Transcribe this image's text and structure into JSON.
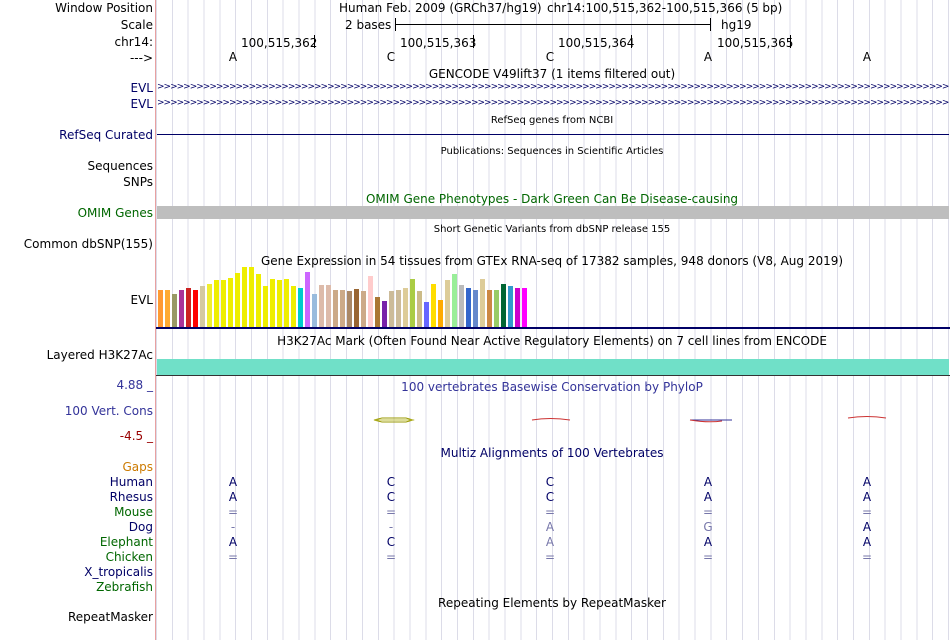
{
  "header": {
    "window_position_label": "Window Position",
    "scale_label": "Scale",
    "chrom_label": "chr14:",
    "strand_label": "--->",
    "assembly": "Human Feb. 2009 (GRCh37/hg19)",
    "position": "chr14:100,515,362-100,515,366 (5 bp)",
    "scale_text": "2 bases",
    "db_name": "hg19",
    "coords": [
      "100,515,362",
      "100,515,363",
      "100,515,364",
      "100,515,365"
    ],
    "bases": [
      "A",
      "C",
      "C",
      "A",
      "A"
    ]
  },
  "gencode": {
    "title": "GENCODE V49lift37 (1 items filtered out)",
    "rows": [
      "EVL",
      "EVL"
    ],
    "arrow_glyphs": ">>>>>>>>>>>>>>>>>>>>>>>>>>>>>>>>>>>>>>>>>>>>>>>>>>>>>>>>>>>>>>>>>>>>>>>>>>>>>>>>>>>>>>>>>>>>>>>>>>>>>>>>>>>>>>>>>>>>>>>>>>>>>>>>>>>>>>>>>>>>>>>>>>>>>>>>>>>>>>>>>>"
  },
  "refseq": {
    "title": "RefSeq genes from NCBI",
    "label": "RefSeq Curated"
  },
  "publications": {
    "title": "Publications: Sequences in Scientific Articles",
    "label": "Sequences"
  },
  "snps_label": "SNPs",
  "omim": {
    "title": "OMIM Gene Phenotypes - Dark Green Can Be Disease-causing",
    "label": "OMIM Genes",
    "bar_color": "#bebebe"
  },
  "dbsnp": {
    "title": "Short Genetic Variants from dbSNP release 155",
    "label": "Common dbSNP(155)"
  },
  "gtex": {
    "title": "Gene Expression in 54 tissues from GTEx RNA-seq of 17382 samples, 948 donors (V8, Aug 2019)",
    "label": "EVL",
    "bars": [
      {
        "v": 0.62,
        "c": "#ff9933"
      },
      {
        "v": 0.62,
        "c": "#ffaa33"
      },
      {
        "v": 0.55,
        "c": "#999966"
      },
      {
        "v": 0.62,
        "c": "#aa3399"
      },
      {
        "v": 0.65,
        "c": "#cc2222"
      },
      {
        "v": 0.62,
        "c": "#ff0000"
      },
      {
        "v": 0.68,
        "c": "#d4c9a0"
      },
      {
        "v": 0.72,
        "c": "#f0ee30"
      },
      {
        "v": 0.78,
        "c": "#eeee00"
      },
      {
        "v": 0.78,
        "c": "#eeee00"
      },
      {
        "v": 0.82,
        "c": "#eeee00"
      },
      {
        "v": 0.9,
        "c": "#eeee00"
      },
      {
        "v": 1.0,
        "c": "#eeee00"
      },
      {
        "v": 1.0,
        "c": "#eeee00"
      },
      {
        "v": 0.88,
        "c": "#eeee00"
      },
      {
        "v": 0.68,
        "c": "#eeee00"
      },
      {
        "v": 0.8,
        "c": "#eeee00"
      },
      {
        "v": 0.78,
        "c": "#eeee00"
      },
      {
        "v": 0.8,
        "c": "#eeee00"
      },
      {
        "v": 0.68,
        "c": "#eeee00"
      },
      {
        "v": 0.65,
        "c": "#00cccc"
      },
      {
        "v": 0.92,
        "c": "#cc66ff"
      },
      {
        "v": 0.55,
        "c": "#99bbdd"
      },
      {
        "v": 0.7,
        "c": "#ddbbaa"
      },
      {
        "v": 0.7,
        "c": "#ddbbaa"
      },
      {
        "v": 0.62,
        "c": "#ccaa88"
      },
      {
        "v": 0.62,
        "c": "#ccaa88"
      },
      {
        "v": 0.6,
        "c": "#aa8866"
      },
      {
        "v": 0.63,
        "c": "#996633"
      },
      {
        "v": 0.6,
        "c": "#ccaa88"
      },
      {
        "v": 0.85,
        "c": "#ffcccc"
      },
      {
        "v": 0.5,
        "c": "#aa7733"
      },
      {
        "v": 0.43,
        "c": "#7722aa"
      },
      {
        "v": 0.6,
        "c": "#ccbb99"
      },
      {
        "v": 0.62,
        "c": "#ccbb99"
      },
      {
        "v": 0.65,
        "c": "#ddcc99"
      },
      {
        "v": 0.8,
        "c": "#aacc44"
      },
      {
        "v": 0.6,
        "c": "#ccbb88"
      },
      {
        "v": 0.42,
        "c": "#6666ff"
      },
      {
        "v": 0.72,
        "c": "#ffdd00"
      },
      {
        "v": 0.45,
        "c": "#ffaa00"
      },
      {
        "v": 0.78,
        "c": "#ddcc99"
      },
      {
        "v": 0.88,
        "c": "#99ee99"
      },
      {
        "v": 0.7,
        "c": "#bbbbbb"
      },
      {
        "v": 0.65,
        "c": "#3366cc"
      },
      {
        "v": 0.62,
        "c": "#6688cc"
      },
      {
        "v": 0.8,
        "c": "#ddcc99"
      },
      {
        "v": 0.62,
        "c": "#cc8844"
      },
      {
        "v": 0.62,
        "c": "#99cc66"
      },
      {
        "v": 0.72,
        "c": "#006633"
      },
      {
        "v": 0.68,
        "c": "#3399cc"
      },
      {
        "v": 0.65,
        "c": "#cc00cc"
      },
      {
        "v": 0.65,
        "c": "#ff00ff"
      }
    ]
  },
  "h3k27ac": {
    "title": "H3K27Ac Mark (Often Found Near Active Regulatory Elements) on 7 cell lines from ENCODE",
    "label": "Layered H3K27Ac",
    "bar_color": "#70e0c8"
  },
  "phylop": {
    "title": "100 vertebrates Basewise Conservation by PhyloP",
    "label": "100 Vert. Cons",
    "ymax": "4.88 _",
    "ymin": "-4.5 _"
  },
  "multiz": {
    "title": "Multiz Alignments of 100 Vertebrates",
    "gaps_label": "Gaps",
    "species": [
      {
        "name": "Human",
        "color": "#000066",
        "cells": [
          "A",
          "C",
          "C",
          "A",
          "A"
        ],
        "cell_colors": [
          "#000066",
          "#000066",
          "#000066",
          "#000066",
          "#000066"
        ]
      },
      {
        "name": "Rhesus",
        "color": "#000066",
        "cells": [
          "A",
          "C",
          "C",
          "A",
          "A"
        ],
        "cell_colors": [
          "#000066",
          "#000066",
          "#000066",
          "#000066",
          "#000066"
        ]
      },
      {
        "name": "Mouse",
        "color": "#006600",
        "cells": [
          "=",
          "=",
          "=",
          "=",
          "="
        ],
        "cell_colors": [
          "#7777aa",
          "#7777aa",
          "#7777aa",
          "#7777aa",
          "#7777aa"
        ]
      },
      {
        "name": "Dog",
        "color": "#000066",
        "cells": [
          "-",
          "-",
          "A",
          "G",
          "A"
        ],
        "cell_colors": [
          "#7777aa",
          "#7777aa",
          "#7777aa",
          "#7777aa",
          "#000066"
        ]
      },
      {
        "name": "Elephant",
        "color": "#006600",
        "cells": [
          "A",
          "C",
          "A",
          "A",
          "A"
        ],
        "cell_colors": [
          "#000066",
          "#000066",
          "#7777aa",
          "#000066",
          "#000066"
        ]
      },
      {
        "name": "Chicken",
        "color": "#006600",
        "cells": [
          "=",
          "=",
          "=",
          "=",
          "="
        ],
        "cell_colors": [
          "#7777aa",
          "#7777aa",
          "#7777aa",
          "#7777aa",
          "#7777aa"
        ]
      },
      {
        "name": "X_tropicalis",
        "color": "#000066",
        "cells": [
          "",
          "",
          "",
          "",
          ""
        ],
        "cell_colors": [
          "#000066",
          "#000066",
          "#000066",
          "#000066",
          "#000066"
        ]
      },
      {
        "name": "Zebrafish",
        "color": "#006600",
        "cells": [
          "",
          "",
          "",
          "",
          ""
        ],
        "cell_colors": [
          "#000066",
          "#000066",
          "#000066",
          "#000066",
          "#000066"
        ]
      }
    ]
  },
  "repeatmasker": {
    "title": "Repeating Elements by RepeatMasker",
    "label": "RepeatMasker"
  }
}
